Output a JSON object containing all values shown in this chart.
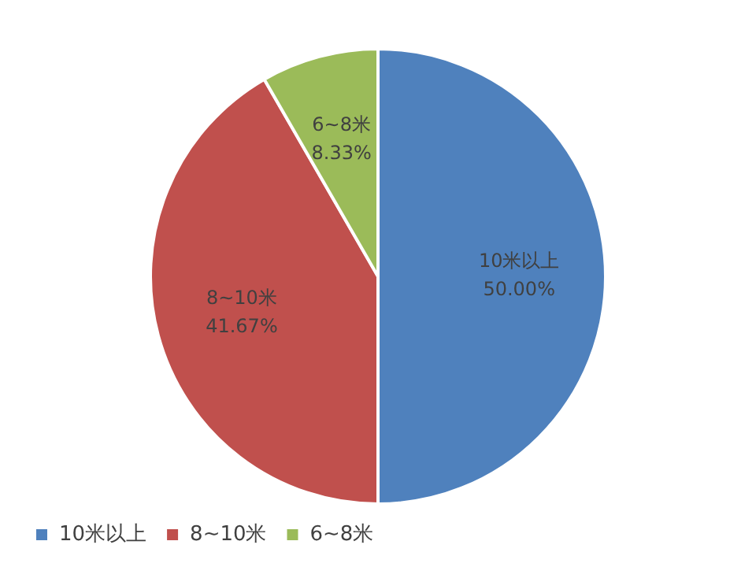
{
  "chart_data": {
    "type": "pie",
    "categories": [
      "10米以上",
      "8~10米",
      "6~8米"
    ],
    "values": [
      50,
      41.67,
      8.33
    ],
    "colors": [
      "#4f81bd",
      "#c0504d",
      "#9bbb59"
    ],
    "data_labels": true,
    "value_labels": [
      "50.00%",
      "41.67%",
      "8.33%"
    ],
    "legend": "bottom left"
  }
}
